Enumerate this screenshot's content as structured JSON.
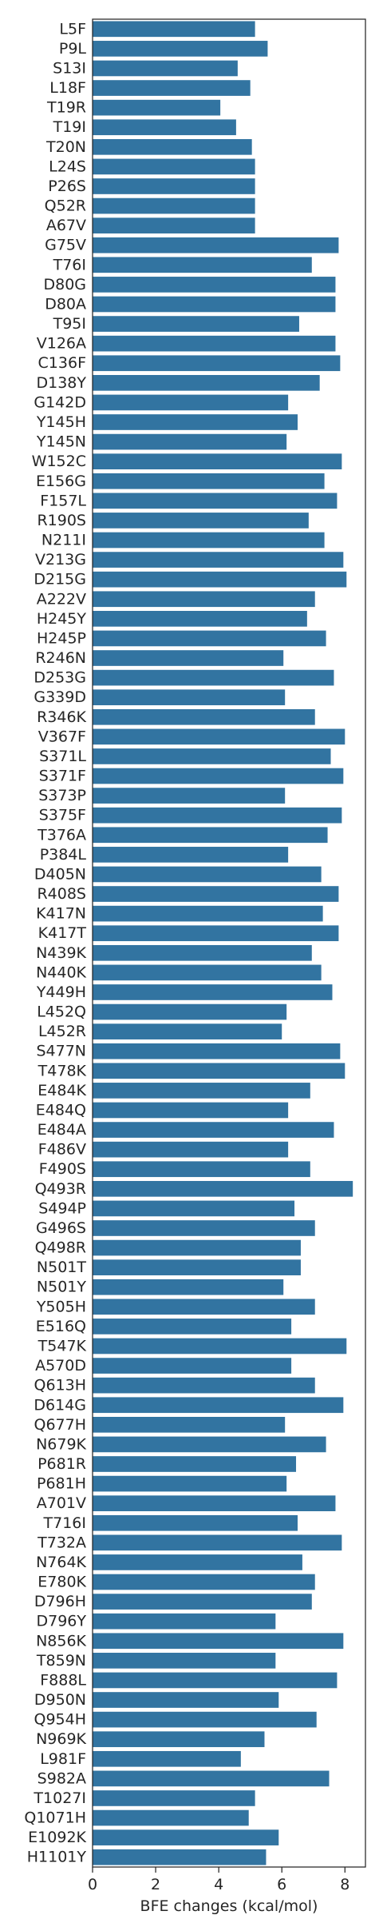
{
  "chart_data": {
    "type": "bar",
    "orientation": "horizontal",
    "title": "",
    "xlabel": "BFE changes (kcal/mol)",
    "ylabel": "",
    "xlim": [
      0,
      8.65
    ],
    "xticks": [
      0,
      2,
      4,
      6,
      8
    ],
    "grid": false,
    "legend": "none",
    "bar_color": "#3274a1",
    "categories": [
      "L5F",
      "P9L",
      "S13I",
      "L18F",
      "T19R",
      "T19I",
      "T20N",
      "L24S",
      "P26S",
      "Q52R",
      "A67V",
      "G75V",
      "T76I",
      "D80G",
      "D80A",
      "T95I",
      "V126A",
      "C136F",
      "D138Y",
      "G142D",
      "Y145H",
      "Y145N",
      "W152C",
      "E156G",
      "F157L",
      "R190S",
      "N211I",
      "V213G",
      "D215G",
      "A222V",
      "H245Y",
      "H245P",
      "R246N",
      "D253G",
      "G339D",
      "R346K",
      "V367F",
      "S371L",
      "S371F",
      "S373P",
      "S375F",
      "T376A",
      "P384L",
      "D405N",
      "R408S",
      "K417N",
      "K417T",
      "N439K",
      "N440K",
      "Y449H",
      "L452Q",
      "L452R",
      "S477N",
      "T478K",
      "E484K",
      "E484Q",
      "E484A",
      "F486V",
      "F490S",
      "Q493R",
      "S494P",
      "G496S",
      "Q498R",
      "N501T",
      "N501Y",
      "Y505H",
      "E516Q",
      "T547K",
      "A570D",
      "Q613H",
      "D614G",
      "Q677H",
      "N679K",
      "P681R",
      "P681H",
      "A701V",
      "T716I",
      "T732A",
      "N764K",
      "E780K",
      "D796H",
      "D796Y",
      "N856K",
      "T859N",
      "F888L",
      "D950N",
      "Q954H",
      "N969K",
      "L981F",
      "S982A",
      "T1027I",
      "Q1071H",
      "E1092K",
      "H1101Y"
    ],
    "values": [
      5.15,
      5.55,
      4.6,
      5.0,
      4.05,
      4.55,
      5.05,
      5.15,
      5.15,
      5.15,
      5.15,
      7.8,
      6.95,
      7.7,
      7.7,
      6.55,
      7.7,
      7.85,
      7.2,
      6.2,
      6.5,
      6.15,
      7.9,
      7.35,
      7.75,
      6.85,
      7.35,
      7.95,
      8.05,
      7.05,
      6.8,
      7.4,
      6.05,
      7.65,
      6.1,
      7.05,
      8.0,
      7.55,
      7.95,
      6.1,
      7.9,
      7.45,
      6.2,
      7.25,
      7.8,
      7.3,
      7.8,
      6.95,
      7.25,
      7.6,
      6.15,
      6.0,
      7.85,
      8.0,
      6.9,
      6.2,
      7.65,
      6.2,
      6.9,
      8.25,
      6.4,
      7.05,
      6.6,
      6.6,
      6.05,
      7.05,
      6.3,
      8.05,
      6.3,
      7.05,
      7.95,
      6.1,
      7.4,
      6.45,
      6.15,
      7.7,
      6.5,
      7.9,
      6.65,
      7.05,
      6.95,
      5.8,
      7.95,
      5.8,
      7.75,
      5.9,
      7.1,
      5.45,
      4.7,
      7.5,
      5.15,
      4.95,
      5.9,
      5.5
    ]
  }
}
